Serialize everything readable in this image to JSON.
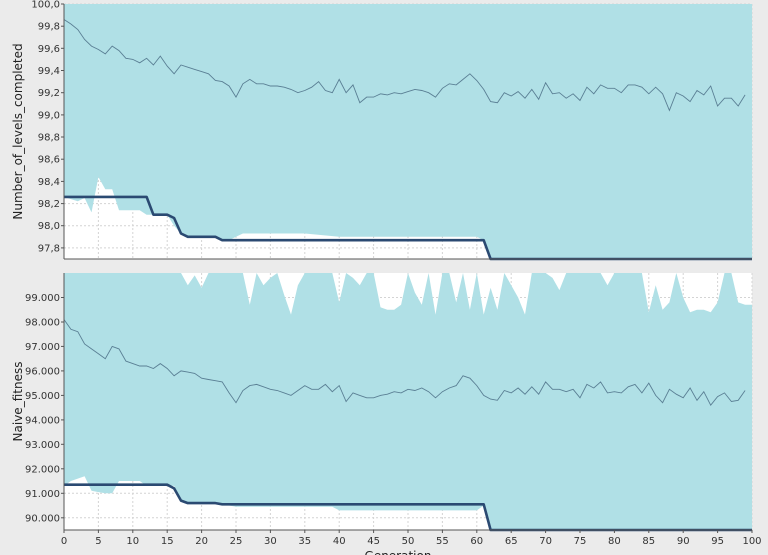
{
  "chart_data": [
    {
      "type": "area",
      "ylabel": "Number_of_levels_completed",
      "ylim": [
        97.7,
        100.0
      ],
      "xlim": [
        0,
        100
      ],
      "yticks": [
        97.8,
        98.0,
        98.2,
        98.4,
        98.6,
        98.8,
        99.0,
        99.2,
        99.4,
        99.6,
        99.8,
        100.0
      ],
      "ytick_labels": [
        "97,8",
        "98,0",
        "98,2",
        "98,4",
        "98,6",
        "98,8",
        "99,0",
        "99,2",
        "99,4",
        "99,6",
        "99,8",
        "100,0"
      ],
      "grid": true,
      "colors": {
        "band": "#b0e0e6",
        "mean": "#5a7f94",
        "best": "#2b4a72",
        "background": "#ffffff"
      },
      "series": [
        {
          "role": "upper",
          "x": [
            0,
            100
          ],
          "y": [
            100.0,
            100.0
          ]
        },
        {
          "role": "lower",
          "x": [
            0,
            1,
            2,
            3,
            4,
            5,
            6,
            7,
            8,
            9,
            10,
            11,
            12,
            13,
            14,
            15,
            16,
            17,
            18,
            19,
            20,
            21,
            22,
            23,
            24,
            25,
            26,
            27,
            28,
            29,
            30,
            35,
            40,
            45,
            50,
            55,
            60,
            61,
            62,
            63,
            100
          ],
          "y": [
            98.26,
            98.24,
            98.22,
            98.25,
            98.12,
            98.44,
            98.33,
            98.33,
            98.14,
            98.14,
            98.14,
            98.14,
            98.1,
            98.1,
            98.1,
            98.1,
            98.0,
            97.93,
            97.9,
            97.9,
            97.9,
            97.9,
            97.9,
            97.87,
            97.87,
            97.9,
            97.93,
            97.93,
            97.93,
            97.93,
            97.93,
            97.93,
            97.9,
            97.9,
            97.9,
            97.9,
            97.9,
            97.87,
            97.7,
            97.7,
            97.7
          ]
        },
        {
          "role": "mean",
          "x": [
            0,
            1,
            2,
            3,
            4,
            5,
            6,
            7,
            8,
            9,
            10,
            11,
            12,
            13,
            14,
            15,
            16,
            17,
            18,
            19,
            20,
            21,
            22,
            23,
            24,
            25,
            26,
            27,
            28,
            29,
            30,
            31,
            32,
            33,
            34,
            35,
            36,
            37,
            38,
            39,
            40,
            41,
            42,
            43,
            44,
            45,
            46,
            47,
            48,
            49,
            50,
            51,
            52,
            53,
            54,
            55,
            56,
            57,
            58,
            59,
            60,
            61,
            62,
            63,
            64,
            65,
            66,
            67,
            68,
            69,
            70,
            71,
            72,
            73,
            74,
            75,
            76,
            77,
            78,
            79,
            80,
            81,
            82,
            83,
            84,
            85,
            86,
            87,
            88,
            89,
            90,
            91,
            92,
            93,
            94,
            95,
            96,
            97,
            98,
            99
          ],
          "y": [
            99.86,
            99.82,
            99.77,
            99.68,
            99.62,
            99.59,
            99.55,
            99.62,
            99.58,
            99.51,
            99.5,
            99.47,
            99.51,
            99.45,
            99.53,
            99.44,
            99.37,
            99.45,
            99.43,
            99.41,
            99.39,
            99.37,
            99.31,
            99.3,
            99.26,
            99.16,
            99.28,
            99.32,
            99.28,
            99.28,
            99.26,
            99.26,
            99.25,
            99.23,
            99.2,
            99.22,
            99.25,
            99.3,
            99.22,
            99.2,
            99.32,
            99.2,
            99.27,
            99.11,
            99.16,
            99.16,
            99.19,
            99.18,
            99.2,
            99.19,
            99.21,
            99.23,
            99.22,
            99.2,
            99.16,
            99.24,
            99.28,
            99.27,
            99.32,
            99.37,
            99.31,
            99.23,
            99.12,
            99.11,
            99.2,
            99.17,
            99.21,
            99.15,
            99.23,
            99.14,
            99.29,
            99.19,
            99.2,
            99.15,
            99.19,
            99.13,
            99.25,
            99.19,
            99.27,
            99.24,
            99.24,
            99.2,
            99.27,
            99.27,
            99.25,
            99.19,
            99.25,
            99.19,
            99.04,
            99.2,
            99.17,
            99.12,
            99.22,
            99.18,
            99.26,
            99.08,
            99.15,
            99.15,
            99.08,
            99.18
          ]
        },
        {
          "role": "best",
          "x": [
            0,
            12,
            13,
            15,
            16,
            17,
            18,
            22,
            23,
            61,
            62,
            100
          ],
          "y": [
            98.26,
            98.26,
            98.1,
            98.1,
            98.07,
            97.93,
            97.9,
            97.9,
            97.87,
            97.87,
            97.7,
            97.7
          ]
        }
      ]
    },
    {
      "type": "area",
      "ylabel": "Naive_fitness",
      "xlabel": "Generation",
      "ylim": [
        89500,
        100000
      ],
      "xlim": [
        0,
        100
      ],
      "yticks": [
        90000,
        91000,
        92000,
        93000,
        94000,
        95000,
        96000,
        97000,
        98000,
        99000
      ],
      "ytick_labels": [
        "90.000",
        "91.000",
        "92.000",
        "93.000",
        "94.000",
        "95.000",
        "96.000",
        "97.000",
        "98.000",
        "99.000"
      ],
      "xticks": [
        0,
        5,
        10,
        15,
        20,
        25,
        30,
        35,
        40,
        45,
        50,
        55,
        60,
        65,
        70,
        75,
        80,
        85,
        90,
        95,
        100
      ],
      "xtick_labels": [
        "0",
        "5",
        "10",
        "15",
        "20",
        "25",
        "30",
        "35",
        "40",
        "45",
        "50",
        "55",
        "60",
        "65",
        "70",
        "75",
        "80",
        "85",
        "90",
        "95",
        "100"
      ],
      "grid": true,
      "colors": {
        "band": "#b0e0e6",
        "mean": "#5a7f94",
        "best": "#2b4a72",
        "background": "#ffffff"
      },
      "series": [
        {
          "role": "upper",
          "x": [
            0,
            17,
            18,
            19,
            20,
            21,
            22,
            23,
            24,
            25,
            26,
            27,
            28,
            29,
            30,
            31,
            32,
            33,
            34,
            35,
            36,
            37,
            38,
            39,
            40,
            41,
            42,
            43,
            44,
            45,
            46,
            47,
            48,
            49,
            50,
            51,
            52,
            53,
            54,
            55,
            56,
            57,
            58,
            59,
            60,
            61,
            62,
            63,
            64,
            65,
            66,
            67,
            68,
            69,
            70,
            71,
            72,
            73,
            74,
            75,
            76,
            77,
            78,
            79,
            80,
            81,
            82,
            83,
            84,
            85,
            86,
            87,
            88,
            89,
            90,
            91,
            92,
            93,
            94,
            95,
            96,
            97,
            98,
            99
          ],
          "y": [
            100000,
            100000,
            99500,
            99900,
            99400,
            100000,
            100000,
            100000,
            100000,
            100000,
            100000,
            98700,
            100000,
            99500,
            99800,
            100000,
            99100,
            98300,
            99500,
            100000,
            100000,
            100000,
            100000,
            100000,
            98800,
            100000,
            99800,
            99500,
            100000,
            100000,
            98600,
            98500,
            98500,
            98700,
            100000,
            99200,
            98700,
            100000,
            98300,
            100000,
            100000,
            98800,
            100000,
            98500,
            100000,
            98300,
            99400,
            98500,
            100000,
            99500,
            99000,
            98300,
            100000,
            100000,
            100000,
            99800,
            99300,
            100000,
            100000,
            100000,
            100000,
            100000,
            100000,
            99500,
            100000,
            100000,
            100000,
            100000,
            100000,
            98400,
            99500,
            98500,
            98800,
            100000,
            99000,
            98400,
            98500,
            98500,
            98400,
            98800,
            100000,
            100000,
            98800,
            98700
          ]
        },
        {
          "role": "lower",
          "x": [
            0,
            1,
            2,
            3,
            4,
            5,
            6,
            7,
            8,
            9,
            10,
            11,
            12,
            13,
            14,
            15,
            16,
            17,
            18,
            19,
            20,
            21,
            22,
            23,
            25,
            39,
            40,
            45,
            60,
            61,
            62,
            100
          ],
          "y": [
            91300,
            91500,
            91600,
            91700,
            91100,
            91050,
            91000,
            91000,
            91500,
            91500,
            91500,
            91500,
            91300,
            91300,
            91300,
            91300,
            91300,
            90700,
            90600,
            90600,
            90600,
            90600,
            90550,
            90550,
            90450,
            90450,
            90300,
            90300,
            90300,
            90500,
            89500,
            89500
          ]
        },
        {
          "role": "mean",
          "x": [
            0,
            1,
            2,
            3,
            4,
            5,
            6,
            7,
            8,
            9,
            10,
            11,
            12,
            13,
            14,
            15,
            16,
            17,
            18,
            19,
            20,
            21,
            22,
            23,
            24,
            25,
            26,
            27,
            28,
            29,
            30,
            31,
            32,
            33,
            34,
            35,
            36,
            37,
            38,
            39,
            40,
            41,
            42,
            43,
            44,
            45,
            46,
            47,
            48,
            49,
            50,
            51,
            52,
            53,
            54,
            55,
            56,
            57,
            58,
            59,
            60,
            61,
            62,
            63,
            64,
            65,
            66,
            67,
            68,
            69,
            70,
            71,
            72,
            73,
            74,
            75,
            76,
            77,
            78,
            79,
            80,
            81,
            82,
            83,
            84,
            85,
            86,
            87,
            88,
            89,
            90,
            91,
            92,
            93,
            94,
            95,
            96,
            97,
            98,
            99
          ],
          "y": [
            98100,
            97700,
            97600,
            97100,
            96900,
            96700,
            96500,
            97000,
            96900,
            96400,
            96300,
            96200,
            96200,
            96100,
            96300,
            96100,
            95800,
            96000,
            95950,
            95900,
            95700,
            95650,
            95600,
            95550,
            95100,
            94700,
            95200,
            95400,
            95450,
            95350,
            95250,
            95200,
            95100,
            95000,
            95200,
            95400,
            95250,
            95250,
            95450,
            95150,
            95400,
            94750,
            95100,
            95000,
            94900,
            94900,
            95000,
            95050,
            95150,
            95100,
            95250,
            95200,
            95300,
            95150,
            94900,
            95150,
            95300,
            95400,
            95800,
            95700,
            95400,
            95000,
            94850,
            94800,
            95200,
            95100,
            95300,
            95050,
            95350,
            95050,
            95550,
            95250,
            95250,
            95150,
            95250,
            94900,
            95450,
            95300,
            95550,
            95100,
            95150,
            95100,
            95350,
            95450,
            95100,
            95500,
            95000,
            94700,
            95250,
            95050,
            94900,
            95300,
            94800,
            95150,
            94600,
            94950,
            95100,
            94750,
            94800,
            95200
          ]
        },
        {
          "role": "best",
          "x": [
            0,
            15,
            16,
            17,
            18,
            22,
            23,
            61,
            62,
            100
          ],
          "y": [
            91350,
            91350,
            91200,
            90700,
            90600,
            90600,
            90550,
            90550,
            89500,
            89500
          ]
        }
      ]
    }
  ]
}
